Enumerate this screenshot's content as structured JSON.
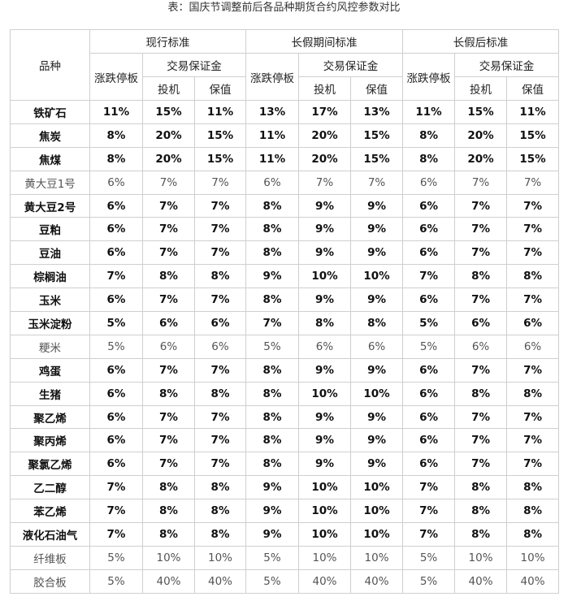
{
  "caption": "表：国庆节调整前后各品种期货合约风控参数对比",
  "header": {
    "variety": "品种",
    "groups": [
      "现行标准",
      "长假期间标准",
      "长假后标准"
    ],
    "limit": "涨跌停板",
    "margin": "交易保证金",
    "spec": "投机",
    "hedge": "保值"
  },
  "rows": [
    {
      "name": "铁矿石",
      "bold": true,
      "v": [
        "11%",
        "15%",
        "11%",
        "13%",
        "17%",
        "13%",
        "11%",
        "15%",
        "11%"
      ]
    },
    {
      "name": "焦炭",
      "bold": true,
      "v": [
        "8%",
        "20%",
        "15%",
        "11%",
        "20%",
        "15%",
        "8%",
        "20%",
        "15%"
      ]
    },
    {
      "name": "焦煤",
      "bold": true,
      "v": [
        "8%",
        "20%",
        "15%",
        "11%",
        "20%",
        "15%",
        "8%",
        "20%",
        "15%"
      ]
    },
    {
      "name": "黄大豆1号",
      "bold": false,
      "v": [
        "6%",
        "7%",
        "7%",
        "6%",
        "7%",
        "7%",
        "6%",
        "7%",
        "7%"
      ]
    },
    {
      "name": "黄大豆2号",
      "bold": true,
      "v": [
        "6%",
        "7%",
        "7%",
        "8%",
        "9%",
        "9%",
        "6%",
        "7%",
        "7%"
      ]
    },
    {
      "name": "豆粕",
      "bold": true,
      "v": [
        "6%",
        "7%",
        "7%",
        "8%",
        "9%",
        "9%",
        "6%",
        "7%",
        "7%"
      ]
    },
    {
      "name": "豆油",
      "bold": true,
      "v": [
        "6%",
        "7%",
        "7%",
        "8%",
        "9%",
        "9%",
        "6%",
        "7%",
        "7%"
      ]
    },
    {
      "name": "棕榈油",
      "bold": true,
      "v": [
        "7%",
        "8%",
        "8%",
        "9%",
        "10%",
        "10%",
        "7%",
        "8%",
        "8%"
      ]
    },
    {
      "name": "玉米",
      "bold": true,
      "v": [
        "6%",
        "7%",
        "7%",
        "8%",
        "9%",
        "9%",
        "6%",
        "7%",
        "7%"
      ]
    },
    {
      "name": "玉米淀粉",
      "bold": true,
      "v": [
        "5%",
        "6%",
        "6%",
        "7%",
        "8%",
        "8%",
        "5%",
        "6%",
        "6%"
      ]
    },
    {
      "name": "粳米",
      "bold": false,
      "v": [
        "5%",
        "6%",
        "6%",
        "5%",
        "6%",
        "6%",
        "5%",
        "6%",
        "6%"
      ]
    },
    {
      "name": "鸡蛋",
      "bold": true,
      "v": [
        "6%",
        "7%",
        "7%",
        "8%",
        "9%",
        "9%",
        "6%",
        "7%",
        "7%"
      ]
    },
    {
      "name": "生猪",
      "bold": true,
      "v": [
        "6%",
        "8%",
        "8%",
        "8%",
        "10%",
        "10%",
        "6%",
        "8%",
        "8%"
      ]
    },
    {
      "name": "聚乙烯",
      "bold": true,
      "v": [
        "6%",
        "7%",
        "7%",
        "8%",
        "9%",
        "9%",
        "6%",
        "7%",
        "7%"
      ]
    },
    {
      "name": "聚丙烯",
      "bold": true,
      "v": [
        "6%",
        "7%",
        "7%",
        "8%",
        "9%",
        "9%",
        "6%",
        "7%",
        "7%"
      ]
    },
    {
      "name": "聚氯乙烯",
      "bold": true,
      "v": [
        "6%",
        "7%",
        "7%",
        "8%",
        "9%",
        "9%",
        "6%",
        "7%",
        "7%"
      ]
    },
    {
      "name": "乙二醇",
      "bold": true,
      "v": [
        "7%",
        "8%",
        "8%",
        "9%",
        "10%",
        "10%",
        "7%",
        "8%",
        "8%"
      ]
    },
    {
      "name": "苯乙烯",
      "bold": true,
      "v": [
        "7%",
        "8%",
        "8%",
        "9%",
        "10%",
        "10%",
        "7%",
        "8%",
        "8%"
      ]
    },
    {
      "name": "液化石油气",
      "bold": true,
      "v": [
        "7%",
        "8%",
        "8%",
        "9%",
        "10%",
        "10%",
        "7%",
        "8%",
        "8%"
      ]
    },
    {
      "name": "纤维板",
      "bold": false,
      "v": [
        "5%",
        "10%",
        "10%",
        "5%",
        "10%",
        "10%",
        "5%",
        "10%",
        "10%"
      ]
    },
    {
      "name": "胶合板",
      "bold": false,
      "v": [
        "5%",
        "40%",
        "40%",
        "5%",
        "40%",
        "40%",
        "5%",
        "40%",
        "40%"
      ]
    }
  ]
}
